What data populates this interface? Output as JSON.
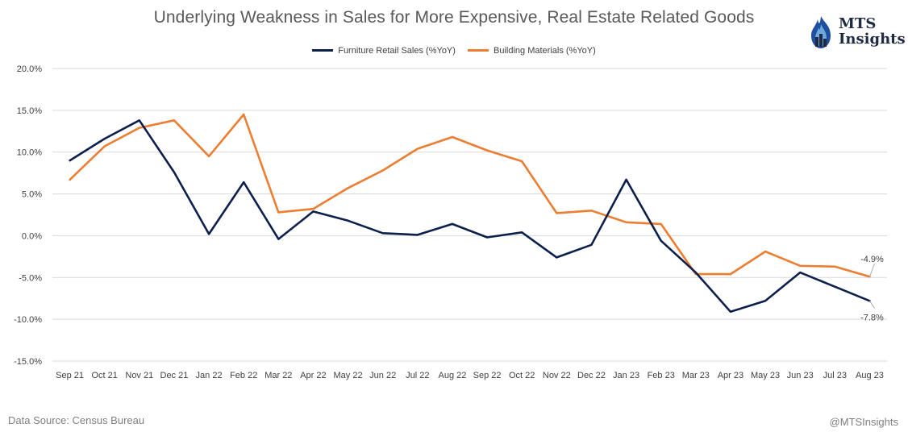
{
  "chart_data": {
    "type": "line",
    "title": "Underlying Weakness in Sales for More Expensive, Real Estate Related Goods",
    "categories": [
      "Sep 21",
      "Oct 21",
      "Nov 21",
      "Dec 21",
      "Jan 22",
      "Feb 22",
      "Mar 22",
      "Apr 22",
      "May 22",
      "Jun 22",
      "Jul 22",
      "Aug 22",
      "Sep 22",
      "Oct 22",
      "Nov 22",
      "Dec 22",
      "Jan 23",
      "Feb 23",
      "Mar 23",
      "Apr 23",
      "May 23",
      "Jun 23",
      "Jul 23",
      "Aug 23"
    ],
    "series": [
      {
        "name": "Furniture Retail Sales (%YoY)",
        "color": "#0d1f4d",
        "values": [
          9.0,
          11.6,
          13.8,
          7.6,
          0.2,
          6.4,
          -0.4,
          2.9,
          1.8,
          0.3,
          0.1,
          1.4,
          -0.2,
          0.4,
          -2.6,
          -1.1,
          6.7,
          -0.6,
          -4.4,
          -9.1,
          -7.8,
          -4.4,
          -6.1,
          -7.8
        ]
      },
      {
        "name": "Building Materials (%YoY)",
        "color": "#ed7d31",
        "values": [
          6.7,
          10.7,
          12.9,
          13.8,
          9.5,
          14.5,
          2.8,
          3.2,
          5.7,
          7.8,
          10.4,
          11.8,
          10.2,
          8.9,
          2.7,
          3.0,
          1.6,
          1.4,
          -4.6,
          -4.6,
          -1.9,
          -3.6,
          -3.7,
          -4.9
        ]
      }
    ],
    "ylim": [
      -15,
      20
    ],
    "yticks": [
      20,
      15,
      10,
      5,
      0,
      -5,
      -10,
      -15
    ],
    "ytick_labels": [
      "20.0%",
      "15.0%",
      "10.0%",
      "5.0%",
      "0.0%",
      "-5.0%",
      "-10.0%",
      "-15.0%"
    ],
    "grid": true,
    "legend_position": "top-center",
    "annotations": [
      {
        "series": 1,
        "index": 23,
        "text": "-4.9%"
      },
      {
        "series": 0,
        "index": 23,
        "text": "-7.8%"
      }
    ]
  },
  "source": "Data Source: Census Bureau",
  "handle": "@MTSInsights",
  "logo": {
    "line1": "MTS",
    "line2": "Insights",
    "icon": "flame-building-icon"
  }
}
